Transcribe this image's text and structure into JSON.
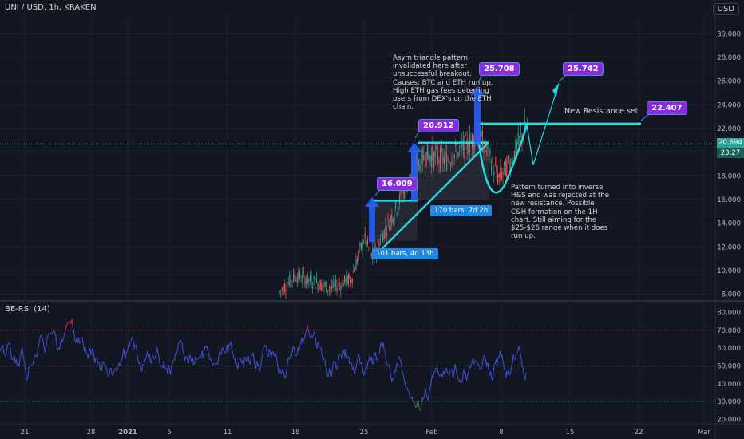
{
  "header": {
    "symbol_title": "UNI / USD, 1h, KRAKEN",
    "currency_badge": "USD"
  },
  "rsi_panel": {
    "title": "BE-RSI (14)"
  },
  "price_axis": {
    "ticks": [
      "30.000",
      "28.000",
      "26.000",
      "24.000",
      "22.000",
      "20.000",
      "18.000",
      "16.000",
      "14.000",
      "12.000",
      "10.000",
      "8.000"
    ],
    "last_price": "20.694",
    "countdown": "23:27",
    "last_price_color": "#26a69a"
  },
  "rsi_axis": {
    "ticks": [
      "80.000",
      "70.000",
      "60.000",
      "50.000",
      "40.000",
      "30.000",
      "20.000"
    ]
  },
  "time_axis": {
    "ticks": [
      "21",
      "28",
      "2021",
      "5",
      "11",
      "18",
      "25",
      "Feb",
      "8",
      "15",
      "22",
      "Mar"
    ]
  },
  "annotations": {
    "note_top": [
      "Asym triangle pattern",
      "invalidated here after",
      "unsuccessful breakout.",
      "Causes: BTC and ETH run up.",
      "High ETH gas fees deterring",
      "users from DEX's on the ETH",
      "chain."
    ],
    "note_right": [
      "Pattern turned into inverse",
      "H&S and was rejected at the",
      "new resistance. Possible",
      "C&H formation on the 1H",
      "chart. Still aiming for the",
      "$25-$26 range when it does",
      "run up."
    ],
    "resistance_label": "New Resistance set",
    "callouts": [
      "16.009",
      "20.912",
      "25.708",
      "25.742",
      "22.407"
    ],
    "range_labels": [
      "101 bars, 4d 13h",
      "170 bars, 7d 2h"
    ]
  },
  "colors": {
    "background": "#131722",
    "candle_up": "#26a69a",
    "candle_down": "#ef5350",
    "trendline": "#26d9e0",
    "callout": "#8a2be2",
    "rsi_line": "#3f51d8",
    "rsi_overbought": "#e91e63",
    "rsi_oversold": "#2e7d32"
  },
  "chart_data": {
    "type": "candlestick",
    "title": "UNI / USD, 1h, KRAKEN",
    "ylim": [
      7.5,
      31.5
    ],
    "x_ticks": [
      "21",
      "28",
      "2021",
      "5",
      "11",
      "18",
      "25",
      "Feb",
      "8",
      "15",
      "22",
      "Mar"
    ],
    "price_path": [
      {
        "x": "Jan 16",
        "y": 8.2
      },
      {
        "x": "Jan 18",
        "y": 9.6
      },
      {
        "x": "Jan 21",
        "y": 8.5
      },
      {
        "x": "Jan 23",
        "y": 9.3
      },
      {
        "x": "Jan 25",
        "y": 12.7
      },
      {
        "x": "Jan 26",
        "y": 11.2
      },
      {
        "x": "Jan 28",
        "y": 15.8
      },
      {
        "x": "Jan 29",
        "y": 18.8
      },
      {
        "x": "Jan 31",
        "y": 19.8
      },
      {
        "x": "Feb 2",
        "y": 19.3
      },
      {
        "x": "Feb 4",
        "y": 20.6
      },
      {
        "x": "Feb 6",
        "y": 21.5
      },
      {
        "x": "Feb 8",
        "y": 17.8
      },
      {
        "x": "Feb 9",
        "y": 19.2
      },
      {
        "x": "Feb 10",
        "y": 22.4
      },
      {
        "x": "Feb 11",
        "y": 20.7
      }
    ],
    "last_price": 20.694,
    "resistance_level": 22.407,
    "targets": [
      25.708,
      25.742
    ],
    "rsi": {
      "name": "BE-RSI (14)",
      "ylim": [
        18,
        86
      ],
      "levels": [
        70,
        50,
        30
      ],
      "range": [
        22,
        82
      ]
    }
  }
}
